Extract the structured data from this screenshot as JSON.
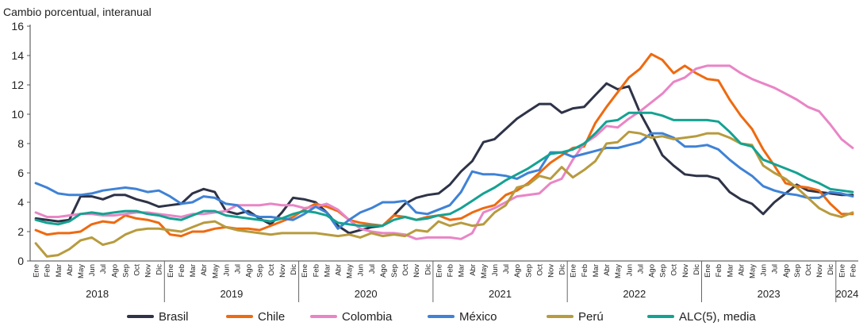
{
  "chart_data": {
    "type": "line",
    "ylabel": "Cambio porcentual, interanual",
    "ylim": [
      0,
      16
    ],
    "yticks": [
      0,
      2,
      4,
      6,
      8,
      10,
      12,
      14,
      16
    ],
    "month_labels": [
      "Ene",
      "Feb",
      "Mar",
      "Abr",
      "May",
      "Jun",
      "Jul",
      "Ago",
      "Sep",
      "Oct",
      "Nov",
      "Dic"
    ],
    "years": [
      {
        "label": "2018",
        "months": 12
      },
      {
        "label": "2019",
        "months": 12
      },
      {
        "label": "2020",
        "months": 12
      },
      {
        "label": "2021",
        "months": 12
      },
      {
        "label": "2022",
        "months": 12
      },
      {
        "label": "2023",
        "months": 12
      },
      {
        "label": "2024",
        "months": 2
      }
    ],
    "legend_position": "bottom",
    "series": [
      {
        "name": "Brasil",
        "color": "#2e3347",
        "values": [
          2.9,
          2.8,
          2.7,
          2.8,
          4.4,
          4.4,
          4.2,
          4.5,
          4.5,
          4.2,
          4.0,
          3.7,
          3.8,
          3.9,
          4.6,
          4.9,
          4.7,
          3.4,
          3.2,
          3.4,
          2.9,
          2.5,
          3.3,
          4.3,
          4.2,
          4.0,
          3.3,
          2.4,
          1.9,
          2.1,
          2.3,
          2.4,
          3.1,
          3.9,
          4.3,
          4.5,
          4.6,
          5.2,
          6.1,
          6.8,
          8.1,
          8.3,
          9.0,
          9.7,
          10.2,
          10.7,
          10.7,
          10.1,
          10.4,
          10.5,
          11.3,
          12.1,
          11.7,
          11.9,
          10.1,
          8.7,
          7.2,
          6.5,
          5.9,
          5.8,
          5.8,
          5.6,
          4.7,
          4.2,
          3.9,
          3.2,
          4.0,
          4.6,
          5.2,
          4.8,
          4.7,
          4.6,
          4.5,
          4.5
        ]
      },
      {
        "name": "Chile",
        "color": "#ee6a10",
        "values": [
          2.1,
          1.8,
          1.9,
          1.9,
          2.0,
          2.5,
          2.7,
          2.6,
          3.1,
          2.9,
          2.8,
          2.6,
          1.8,
          1.7,
          2.0,
          2.0,
          2.2,
          2.3,
          2.2,
          2.2,
          2.1,
          2.4,
          2.7,
          3.0,
          3.5,
          3.9,
          3.7,
          3.4,
          2.8,
          2.6,
          2.5,
          2.4,
          3.1,
          3.0,
          2.8,
          3.0,
          3.1,
          2.8,
          2.9,
          3.3,
          3.6,
          3.8,
          4.5,
          4.8,
          5.3,
          6.0,
          6.7,
          7.2,
          7.7,
          7.8,
          9.4,
          10.5,
          11.5,
          12.5,
          13.1,
          14.1,
          13.7,
          12.8,
          13.3,
          12.8,
          12.4,
          12.3,
          11.0,
          9.9,
          9.0,
          7.6,
          6.5,
          5.3,
          5.1,
          5.0,
          4.8,
          3.9,
          3.2,
          3.2
        ]
      },
      {
        "name": "Colombia",
        "color": "#e985c6",
        "values": [
          3.3,
          3.0,
          3.0,
          3.1,
          3.2,
          3.2,
          3.1,
          3.1,
          3.2,
          3.3,
          3.3,
          3.2,
          3.1,
          3.0,
          3.2,
          3.2,
          3.3,
          3.4,
          3.8,
          3.8,
          3.8,
          3.9,
          3.8,
          3.8,
          3.6,
          3.7,
          3.9,
          3.5,
          2.8,
          2.2,
          2.0,
          1.9,
          1.9,
          1.8,
          1.5,
          1.6,
          1.6,
          1.6,
          1.5,
          1.9,
          3.3,
          3.6,
          4.0,
          4.4,
          4.5,
          4.6,
          5.3,
          5.6,
          6.9,
          8.0,
          8.5,
          9.2,
          9.1,
          9.7,
          10.2,
          10.8,
          11.4,
          12.2,
          12.5,
          13.1,
          13.3,
          13.3,
          13.3,
          12.8,
          12.4,
          12.1,
          11.8,
          11.4,
          11.0,
          10.5,
          10.2,
          9.3,
          8.3,
          7.7
        ]
      },
      {
        "name": "México",
        "color": "#3f82d6",
        "values": [
          5.3,
          5.0,
          4.6,
          4.5,
          4.5,
          4.6,
          4.8,
          4.9,
          5.0,
          4.9,
          4.7,
          4.8,
          4.4,
          3.9,
          4.0,
          4.4,
          4.3,
          3.9,
          3.8,
          3.2,
          3.0,
          3.0,
          2.9,
          2.8,
          3.2,
          3.7,
          3.3,
          2.2,
          2.8,
          3.3,
          3.6,
          4.0,
          4.0,
          4.1,
          3.3,
          3.2,
          3.5,
          3.8,
          4.7,
          6.1,
          5.9,
          5.9,
          5.8,
          5.6,
          6.0,
          6.2,
          7.4,
          7.4,
          7.1,
          7.3,
          7.5,
          7.7,
          7.7,
          7.9,
          8.1,
          8.7,
          8.7,
          8.4,
          7.8,
          7.8,
          7.9,
          7.6,
          6.9,
          6.3,
          5.8,
          5.1,
          4.8,
          4.6,
          4.5,
          4.3,
          4.3,
          4.7,
          4.6,
          4.4
        ]
      },
      {
        "name": "Perú",
        "color": "#b79b3e",
        "values": [
          1.2,
          0.3,
          0.4,
          0.8,
          1.4,
          1.6,
          1.1,
          1.3,
          1.8,
          2.1,
          2.2,
          2.2,
          2.1,
          2.0,
          2.3,
          2.6,
          2.7,
          2.3,
          2.1,
          2.0,
          1.9,
          1.8,
          1.9,
          1.9,
          1.9,
          1.9,
          1.8,
          1.7,
          1.8,
          1.6,
          1.9,
          1.7,
          1.8,
          1.7,
          2.1,
          2.0,
          2.7,
          2.4,
          2.6,
          2.4,
          2.5,
          3.3,
          3.8,
          5.0,
          5.2,
          5.8,
          5.6,
          6.4,
          5.7,
          6.2,
          6.8,
          8.0,
          8.1,
          8.8,
          8.7,
          8.4,
          8.5,
          8.3,
          8.4,
          8.5,
          8.7,
          8.7,
          8.4,
          8.0,
          7.9,
          6.5,
          6.0,
          5.6,
          5.0,
          4.3,
          3.6,
          3.2,
          3.0,
          3.3
        ]
      },
      {
        "name": "ALC(5), media",
        "color": "#14a292",
        "values": [
          2.8,
          2.6,
          2.5,
          2.7,
          3.2,
          3.3,
          3.2,
          3.3,
          3.4,
          3.4,
          3.2,
          3.1,
          2.9,
          2.8,
          3.1,
          3.4,
          3.4,
          3.1,
          3.0,
          2.9,
          2.8,
          2.7,
          2.9,
          3.2,
          3.4,
          3.3,
          3.1,
          2.6,
          2.5,
          2.4,
          2.4,
          2.4,
          2.8,
          3.0,
          2.8,
          2.9,
          3.1,
          3.2,
          3.6,
          4.1,
          4.6,
          5.0,
          5.5,
          5.9,
          6.3,
          6.8,
          7.3,
          7.4,
          7.6,
          8.0,
          8.7,
          9.5,
          9.6,
          10.1,
          10.1,
          10.1,
          9.9,
          9.6,
          9.6,
          9.6,
          9.6,
          9.5,
          8.8,
          8.0,
          7.8,
          6.9,
          6.6,
          6.3,
          6.0,
          5.6,
          5.3,
          4.9,
          4.8,
          4.7
        ]
      }
    ]
  }
}
